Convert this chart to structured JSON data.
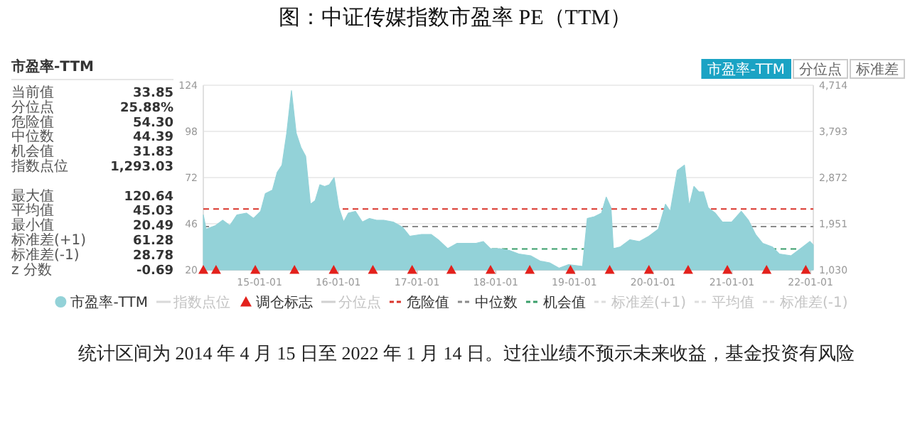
{
  "chart_data": [
    {
      "type": "other",
      "title": "市盈率-TTM",
      "categories": [
        "当前值",
        "分位点",
        "危险值",
        "中位数",
        "机会值",
        "指数点位",
        null,
        "最大值",
        "平均值",
        "最小值",
        "标准差(+1)",
        "标准差(-1)",
        "z 分数"
      ],
      "value_labels": [
        "33.85",
        "25.88%",
        "54.30",
        "44.39",
        "31.83",
        "1,293.03",
        null,
        "120.64",
        "45.03",
        "20.49",
        "61.28",
        "28.78",
        "-0.69"
      ]
    },
    {
      "type": "area",
      "title": "图：中证传媒指数市盈率 PE（TTM）",
      "xlim": [
        "2014-04-15",
        "2022-01-14"
      ],
      "xticks": [
        {
          "value": "2015-01-01",
          "label": "15-01-01"
        },
        {
          "value": "2016-01-01",
          "label": "16-01-01"
        },
        {
          "value": "2017-01-01",
          "label": "17-01-01"
        },
        {
          "value": "2018-01-01",
          "label": "18-01-01"
        },
        {
          "value": "2019-01-01",
          "label": "19-01-01"
        },
        {
          "value": "2020-01-01",
          "label": "20-01-01"
        },
        {
          "value": "2021-01-01",
          "label": "21-01-01"
        },
        {
          "value": "2022-01-01",
          "label": "22-01-01"
        }
      ],
      "ylim": [
        20,
        124
      ],
      "yticks": [
        20,
        46,
        72,
        98,
        124
      ],
      "y2lim": [
        1030,
        4714
      ],
      "y2ticks": [
        {
          "value": 1030,
          "label": "1,030"
        },
        {
          "value": 1951,
          "label": "1,951"
        },
        {
          "value": 2872,
          "label": "2,872"
        },
        {
          "value": 3793,
          "label": "3,793"
        },
        {
          "value": 4714,
          "label": "4,714"
        }
      ],
      "grid": "y",
      "legend": "bottom",
      "series": [
        {
          "name": "市盈率-TTM",
          "type": "area",
          "color": "#93d2d8",
          "x": [
            "2014-04-15",
            "2014-04-28",
            "2014-06-11",
            "2014-07-14",
            "2014-08-16",
            "2014-09-18",
            "2014-11-01",
            "2014-12-04",
            "2015-01-06",
            "2015-01-28",
            "2015-03-02",
            "2015-03-24",
            "2015-04-15",
            "2015-05-07",
            "2015-05-29",
            "2015-06-20",
            "2015-07-12",
            "2015-08-03",
            "2015-08-25",
            "2015-09-16",
            "2015-10-08",
            "2015-10-30",
            "2015-11-21",
            "2015-12-13",
            "2016-01-04",
            "2016-01-26",
            "2016-02-17",
            "2016-03-21",
            "2016-04-22",
            "2016-05-25",
            "2016-06-27",
            "2016-07-30",
            "2016-09-12",
            "2016-10-26",
            "2016-11-28",
            "2017-01-22",
            "2017-03-07",
            "2017-04-09",
            "2017-05-23",
            "2017-07-06",
            "2017-08-19",
            "2017-10-02",
            "2017-11-04",
            "2017-12-07",
            "2018-01-20",
            "2018-03-05",
            "2018-04-18",
            "2018-06-12",
            "2018-07-26",
            "2018-09-08",
            "2018-10-22",
            "2018-12-05",
            "2019-02-08",
            "2019-03-02",
            "2019-04-04",
            "2019-05-07",
            "2019-05-29",
            "2019-06-20",
            "2019-07-01",
            "2019-08-03",
            "2019-09-16",
            "2019-10-30",
            "2019-12-13",
            "2020-01-26",
            "2020-02-28",
            "2020-03-21",
            "2020-04-23",
            "2020-05-26",
            "2020-06-17",
            "2020-07-09",
            "2020-07-31",
            "2020-08-22",
            "2020-09-13",
            "2020-10-16",
            "2020-11-18",
            "2021-01-01",
            "2021-02-14",
            "2021-03-19",
            "2021-04-21",
            "2021-05-24",
            "2021-07-07",
            "2021-08-09",
            "2021-10-03",
            "2021-11-16",
            "2021-12-29",
            "2022-01-14"
          ],
          "values": [
            51,
            43,
            45,
            48,
            45,
            51,
            52,
            49,
            53,
            63,
            65,
            75,
            79,
            97,
            121,
            97,
            89,
            84,
            57,
            59,
            68,
            67,
            68,
            72,
            55,
            47,
            52,
            53,
            47,
            49,
            48,
            48,
            47,
            44,
            39,
            40,
            40,
            37,
            32,
            35,
            35,
            35,
            36,
            32,
            32,
            31,
            29,
            28,
            25,
            24,
            21,
            23,
            22,
            49,
            50,
            52,
            61,
            55,
            32,
            33,
            37,
            36,
            39,
            43,
            57,
            53,
            76,
            79,
            56,
            67,
            64,
            64,
            55,
            52,
            47,
            47,
            53,
            48,
            40,
            35,
            33,
            29,
            28,
            32,
            36,
            34
          ]
        },
        {
          "name": "指数点位",
          "type": "line",
          "color": "#d9d9d9",
          "values": [
            null
          ]
        },
        {
          "name": "调仓标志",
          "type": "scatter",
          "marker": "triangle",
          "color": "#e3211c",
          "x": [
            "2014-04-15",
            "2014-06-13",
            "2014-12-12",
            "2015-06-12",
            "2015-12-11",
            "2016-06-10",
            "2016-12-09",
            "2017-06-09",
            "2017-12-08",
            "2018-06-08",
            "2018-12-14",
            "2019-06-14",
            "2019-12-13",
            "2020-06-12",
            "2020-12-11",
            "2021-06-11",
            "2021-12-10"
          ],
          "values": [
            20,
            20,
            20,
            20,
            20,
            20,
            20,
            20,
            20,
            20,
            20,
            20,
            20,
            20,
            20,
            20,
            20
          ]
        },
        {
          "name": "分位点",
          "type": "line",
          "color": "#d0d0d0",
          "values": [
            null
          ]
        },
        {
          "name": "标准差(+1)",
          "type": "line",
          "color": "#dddddd",
          "values": [
            null
          ]
        },
        {
          "name": "平均值",
          "type": "line",
          "color": "#dddddd",
          "values": [
            null
          ]
        },
        {
          "name": "标准差(-1)",
          "type": "line",
          "color": "#dddddd",
          "values": [
            null
          ]
        }
      ],
      "ref_lines": [
        {
          "axis": "y",
          "value": 54.3,
          "label": "危险值",
          "color": "#d9342b",
          "line_style": "dashed"
        },
        {
          "axis": "y",
          "value": 44.39,
          "label": "中位数",
          "color": "#8a8a8a",
          "line_style": "dashed"
        },
        {
          "axis": "y",
          "value": 31.83,
          "label": "机会值",
          "color": "#3a9e6a",
          "line_style": "dashed"
        }
      ],
      "annotations": [
        "统计区间为 2014 年 4 月 15 日至 2022 年 1 月 14 日。过往业绩不预示未来收益，基金投资有风险",
        "市盈率-TTM",
        "分位点",
        "标准差"
      ]
    }
  ]
}
